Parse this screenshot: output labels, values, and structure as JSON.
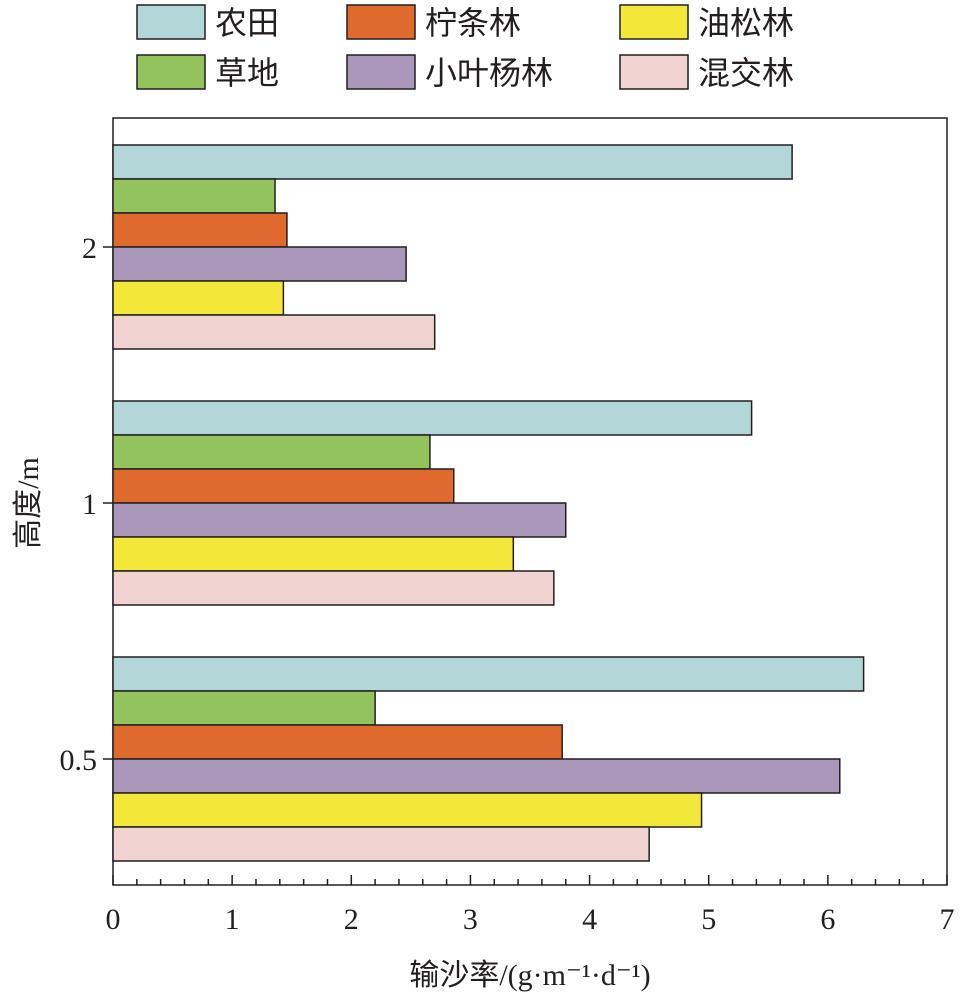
{
  "chart_data": {
    "type": "bar",
    "orientation": "horizontal",
    "title": "",
    "xlabel": "输沙率/(g·m⁻¹·d⁻¹)",
    "ylabel": "高度/m",
    "xlim": [
      0,
      7
    ],
    "x_ticks": [
      "0",
      "1",
      "2",
      "3",
      "4",
      "5",
      "6",
      "7"
    ],
    "categories": [
      "2",
      "1",
      "0.5"
    ],
    "grid": false,
    "legend_position": "top",
    "series": [
      {
        "name": "农田",
        "color": "#b3d7d9",
        "values": [
          5.7,
          5.36,
          6.3
        ]
      },
      {
        "name": "草地",
        "color": "#92c35c",
        "values": [
          1.36,
          2.66,
          2.2
        ]
      },
      {
        "name": "柠条林",
        "color": "#e06a2e",
        "values": [
          1.46,
          2.86,
          3.77
        ]
      },
      {
        "name": "小叶杨林",
        "color": "#ab97b9",
        "values": [
          2.46,
          3.8,
          6.1
        ]
      },
      {
        "name": "油松林",
        "color": "#f3e83a",
        "values": [
          1.43,
          3.36,
          4.94
        ]
      },
      {
        "name": "混交林",
        "color": "#f0d3d1",
        "values": [
          2.7,
          3.7,
          4.5
        ]
      }
    ]
  }
}
